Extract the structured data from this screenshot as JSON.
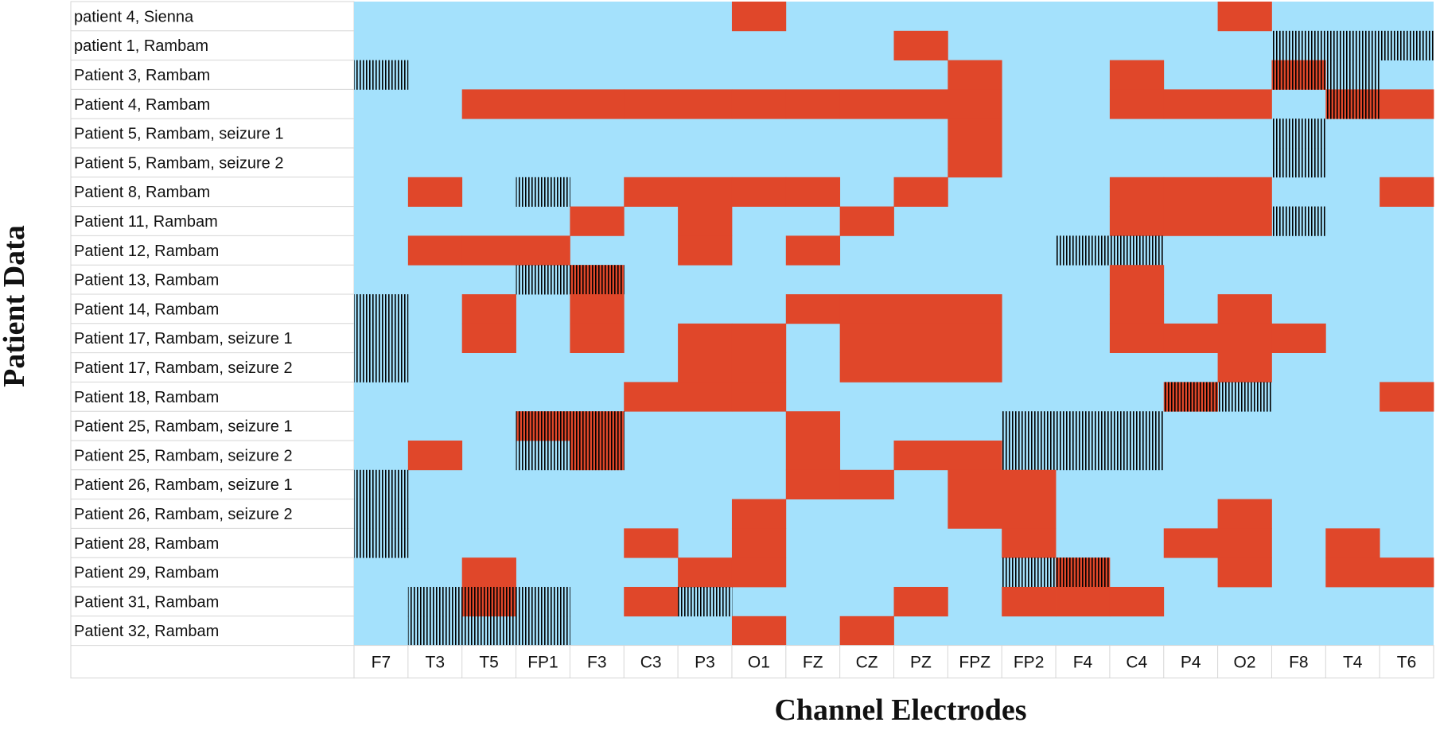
{
  "chart_data": {
    "type": "heatmap",
    "xlabel": "Channel Electrodes",
    "ylabel": "Patient Data",
    "channels": [
      "F7",
      "T3",
      "T5",
      "FP1",
      "F3",
      "C3",
      "P3",
      "O1",
      "FZ",
      "CZ",
      "PZ",
      "FPZ",
      "FP2",
      "F4",
      "C4",
      "P4",
      "O2",
      "F8",
      "T4",
      "T6"
    ],
    "patients": [
      "patient 4, Sienna",
      "patient 1, Rambam",
      "Patient 3, Rambam",
      "Patient 4, Rambam",
      "Patient 5, Rambam, seizure 1",
      "Patient 5, Rambam, seizure 2",
      "Patient 8, Rambam",
      "Patient 11, Rambam",
      "Patient 12, Rambam",
      "Patient 13, Rambam",
      "Patient 14, Rambam",
      "Patient 17, Rambam, seizure 1",
      "Patient 17, Rambam, seizure 2",
      "Patient 18, Rambam",
      "Patient 25, Rambam, seizure 1",
      "Patient 25, Rambam, seizure 2",
      "Patient 26, Rambam, seizure 1",
      "Patient 26, Rambam, seizure 2",
      "Patient 28, Rambam",
      "Patient 29, Rambam",
      "Patient 31, Rambam",
      "Patient 32, Rambam"
    ],
    "cell_codes": {
      "0": "background",
      "1": "red",
      "2": "hatched",
      "3": "red + hatched"
    },
    "cells": [
      "00000001000000001000",
      "00000000001000000222",
      "20000000000100100320",
      "00111111111100111031",
      "00000000000100000200",
      "00000000000100000200",
      "01020111101000111001",
      "00001010010000111200",
      "01110010100002200000",
      "00023000000000100000",
      "20101000111100101000",
      "20101011011100111100",
      "20000011011100001000",
      "00000111000000032001",
      "00033000100022200000",
      "01023000101122200000",
      "20000000110110000000",
      "20000001000110001000",
      "20000101000010011010",
      "00100011000023001011",
      "02320120001011100000",
      "02220001010000000000"
    ],
    "colors": {
      "background": "#a4e1fc",
      "red": "#e0472a",
      "hatch": "#000000"
    }
  }
}
